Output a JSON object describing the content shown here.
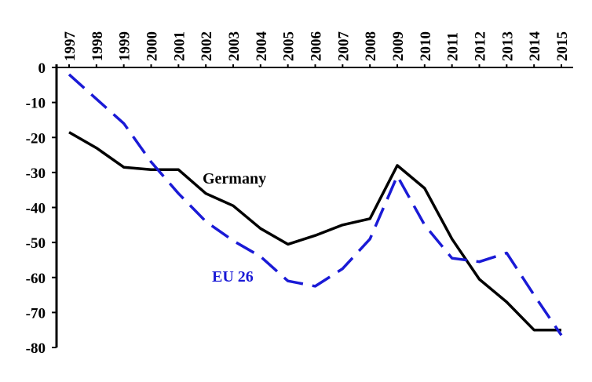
{
  "chart_data": {
    "type": "line",
    "title": "",
    "xlabel": "",
    "ylabel": "",
    "x": [
      "1997",
      "1998",
      "1999",
      "2000",
      "2001",
      "2002",
      "2003",
      "2004",
      "2005",
      "2006",
      "2007",
      "2008",
      "2009",
      "2010",
      "2011",
      "2012",
      "2013",
      "2014",
      "2015"
    ],
    "ylim": [
      -80,
      0
    ],
    "yticks": [
      0,
      -10,
      -20,
      -30,
      -40,
      -50,
      -60,
      -70,
      -80
    ],
    "x_axis_position": "top",
    "grid": false,
    "legend": "inline labels",
    "series": [
      {
        "name": "Germany",
        "color": "#000000",
        "style": "solid",
        "values": [
          -18.5,
          -23,
          -28.5,
          -29.2,
          -29.2,
          -36,
          -39.5,
          -46,
          -50.5,
          -48,
          -45,
          -43.2,
          -28,
          -34.5,
          -49,
          -60.5,
          -67,
          -75,
          -75
        ]
      },
      {
        "name": "EU 26",
        "color": "#1a1ad6",
        "style": "dashed",
        "values": [
          -2,
          -9,
          -16,
          -27,
          -36,
          -44,
          -49.5,
          -54,
          -61,
          -62.5,
          -57.5,
          -49,
          -31,
          -45,
          -54.5,
          -55.5,
          -53,
          -65,
          -76.5
        ]
      }
    ]
  }
}
